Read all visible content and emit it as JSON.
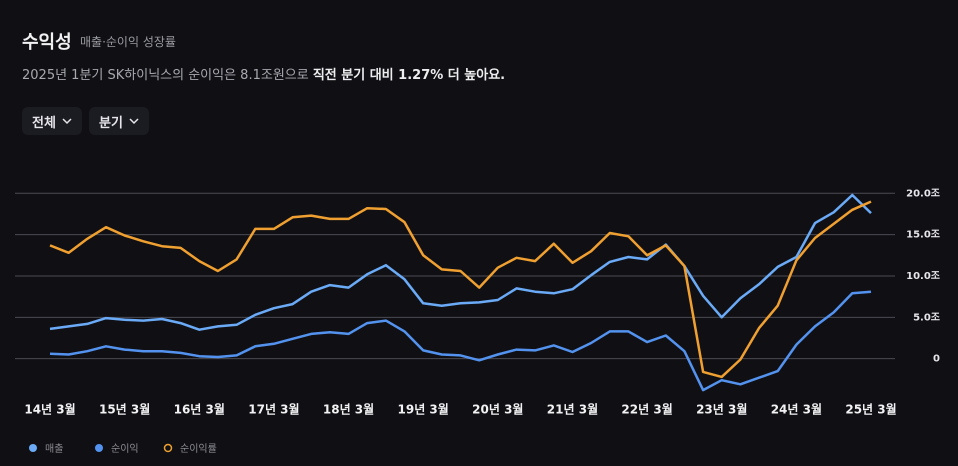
{
  "header": {
    "description": "2025년 1분기 SK하이닉스의 순이익은 8.1조원으로 ",
    "emphasis": "직전 분기 대비 1.27% 더 높아요."
  },
  "controls": [
    "전체",
    "분기"
  ],
  "chart_data": {
    "type": "line",
    "title": "수익성",
    "subtitle": "매출·순이익 성장률",
    "categories": [
      "14년 3월",
      null,
      null,
      null,
      "15년 3월",
      null,
      null,
      null,
      "16년 3월",
      null,
      null,
      null,
      "17년 3월",
      null,
      null,
      null,
      "18년 3월",
      null,
      null,
      null,
      "19년 3월",
      null,
      null,
      null,
      "20년 3월",
      null,
      null,
      null,
      "21년 3월",
      null,
      null,
      null,
      "22년 3월",
      null,
      null,
      null,
      "23년 3월",
      null,
      null,
      null,
      "24년 3월",
      null,
      null,
      null,
      "25년 3월"
    ],
    "series": [
      {
        "name": "매출",
        "color": "#6aaaf7",
        "values": [
          3.6,
          3.9,
          4.2,
          4.9,
          4.7,
          4.6,
          4.8,
          4.3,
          3.5,
          3.9,
          4.1,
          5.3,
          6.1,
          6.6,
          8.1,
          8.9,
          8.6,
          10.2,
          11.3,
          9.6,
          6.7,
          6.4,
          6.7,
          6.8,
          7.1,
          8.5,
          8.1,
          7.9,
          8.4,
          10.1,
          11.7,
          12.3,
          12.0,
          13.8,
          11.2,
          7.6,
          5.0,
          7.3,
          9.0,
          11.1,
          12.3,
          16.4,
          17.7,
          19.8,
          17.6
        ]
      },
      {
        "name": "순이익",
        "color": "#5393ef",
        "values": [
          0.6,
          0.5,
          0.9,
          1.5,
          1.1,
          0.9,
          0.9,
          0.7,
          0.3,
          0.2,
          0.4,
          1.5,
          1.8,
          2.4,
          3.0,
          3.2,
          3.0,
          4.3,
          4.6,
          3.3,
          1.0,
          0.5,
          0.4,
          -0.2,
          0.5,
          1.1,
          1.0,
          1.6,
          0.8,
          1.9,
          3.3,
          3.3,
          2.0,
          2.8,
          0.9,
          -3.8,
          -2.6,
          -3.1,
          -2.3,
          -1.5,
          1.7,
          3.9,
          5.6,
          7.9,
          8.1
        ]
      },
      {
        "name": "순이익률",
        "color": "#f0a030",
        "values": [
          13.7,
          12.8,
          14.5,
          15.9,
          14.9,
          14.2,
          13.6,
          13.4,
          11.8,
          10.6,
          12.0,
          15.7,
          15.7,
          17.1,
          17.3,
          16.9,
          16.9,
          18.2,
          18.1,
          16.5,
          12.5,
          10.8,
          10.6,
          8.6,
          11.0,
          12.2,
          11.8,
          13.9,
          11.6,
          13.0,
          15.2,
          14.8,
          12.5,
          13.7,
          11.2,
          -1.6,
          -2.2,
          -0.1,
          3.7,
          6.4,
          11.9,
          14.6,
          16.3,
          18.0,
          19.0
        ]
      }
    ],
    "ylim": [
      -5,
      20.4
    ],
    "yticks": [
      {
        "value": 20,
        "label": "20.0조"
      },
      {
        "value": 15,
        "label": "15.0조"
      },
      {
        "value": 10,
        "label": "10.0조"
      },
      {
        "value": 5,
        "label": "5.0조"
      },
      0
    ],
    "grid": true
  }
}
